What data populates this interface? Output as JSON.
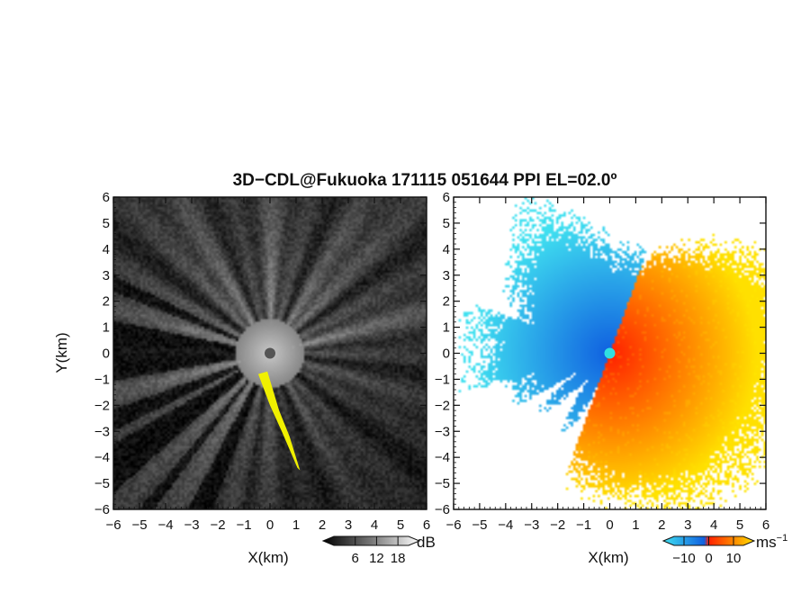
{
  "chart_data": [
    {
      "type": "heatmap",
      "title": "3D−CDL@Fukuoka 171115 051644 PPI EL=02.0º",
      "xlabel": "X(km)",
      "ylabel": "Y(km)",
      "xlim": [
        -6,
        6
      ],
      "ylim": [
        -6,
        6
      ],
      "x_ticks": [
        "−6",
        "−5",
        "−4",
        "−3",
        "−2",
        "−1",
        "0",
        "1",
        "2",
        "3",
        "4",
        "5",
        "6"
      ],
      "y_ticks": [
        "6",
        "5",
        "4",
        "3",
        "2",
        "1",
        "0",
        "−1",
        "−2",
        "−3",
        "−4",
        "−5",
        "−6"
      ],
      "colorbar": {
        "unit": "dB",
        "ticks": [
          "6",
          "12",
          "18"
        ],
        "values": [
          6,
          12,
          18
        ],
        "range": [
          0,
          21
        ]
      },
      "colors": {
        "background": "#1a1a1a",
        "beam": "#f0f0f0",
        "highlight": "#f0f000",
        "center": "#555555"
      }
    },
    {
      "type": "heatmap",
      "xlabel": "X(km)",
      "xlim": [
        -6,
        6
      ],
      "ylim": [
        -6,
        6
      ],
      "x_ticks": [
        "−6",
        "−5",
        "−4",
        "−3",
        "−2",
        "−1",
        "0",
        "1",
        "2",
        "3",
        "4",
        "5",
        "6"
      ],
      "colorbar": {
        "unit": "ms",
        "unit_exp": "−1",
        "ticks": [
          "−10",
          "0",
          "10"
        ],
        "values": [
          -10,
          0,
          10
        ],
        "range": [
          -14,
          14
        ]
      },
      "colors": {
        "approach_far": "#40e0f0",
        "approach": "#1060e0",
        "recede": "#ff2000",
        "recede_far": "#ffe000",
        "center": "#30e0e0"
      }
    }
  ]
}
